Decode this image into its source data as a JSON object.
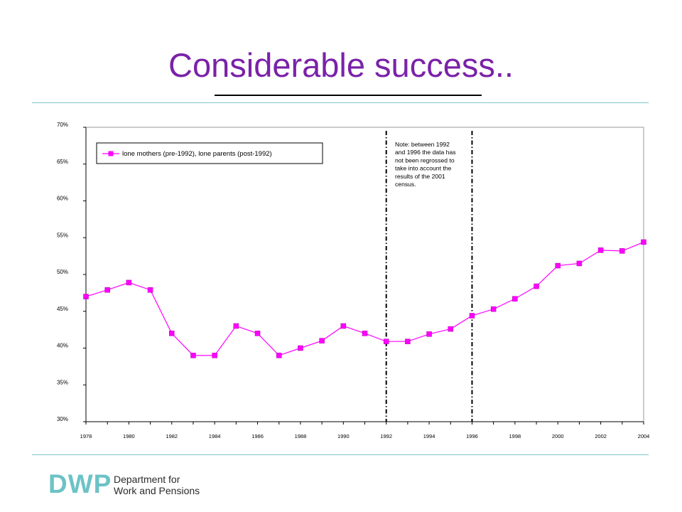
{
  "slide": {
    "title": "Considerable success.."
  },
  "chart_data": {
    "type": "line",
    "x": [
      1978,
      1979,
      1980,
      1981,
      1982,
      1983,
      1984,
      1985,
      1986,
      1987,
      1988,
      1989,
      1990,
      1991,
      1992,
      1993,
      1994,
      1995,
      1996,
      1997,
      1998,
      1999,
      2000,
      2001,
      2002,
      2003,
      2004
    ],
    "series": [
      {
        "name": "lone mothers (pre-1992), lone parents (post-1992)",
        "values": [
          47.0,
          47.9,
          48.9,
          47.9,
          42.0,
          39.0,
          39.0,
          43.0,
          42.0,
          39.0,
          40.0,
          41.0,
          43.0,
          42.0,
          40.9,
          40.9,
          41.9,
          42.6,
          44.4,
          45.3,
          46.7,
          48.4,
          51.2,
          51.5,
          53.3,
          53.2,
          54.4
        ],
        "color": "#ff00ff"
      }
    ],
    "xticks": [
      "1978",
      "1980",
      "1982",
      "1984",
      "1986",
      "1988",
      "1990",
      "1992",
      "1994",
      "1996",
      "1998",
      "2000",
      "2002",
      "2004"
    ],
    "yticks": [
      "30%",
      "35%",
      "40%",
      "45%",
      "50%",
      "55%",
      "60%",
      "65%",
      "70%"
    ],
    "ylim": [
      30,
      70
    ],
    "xlim": [
      1978,
      2004
    ],
    "legend": "top-left",
    "grid": false,
    "vertical_markers": [
      1992,
      1996
    ],
    "annotation": "Note: between 1992 and 1996 the data has not been regrossed to take into account the results of the 2001 census."
  },
  "footer": {
    "logo_mark": "DWP",
    "logo_line1": "Department for",
    "logo_line2": "Work and Pensions",
    "logo_color": "#6cc3c6"
  }
}
